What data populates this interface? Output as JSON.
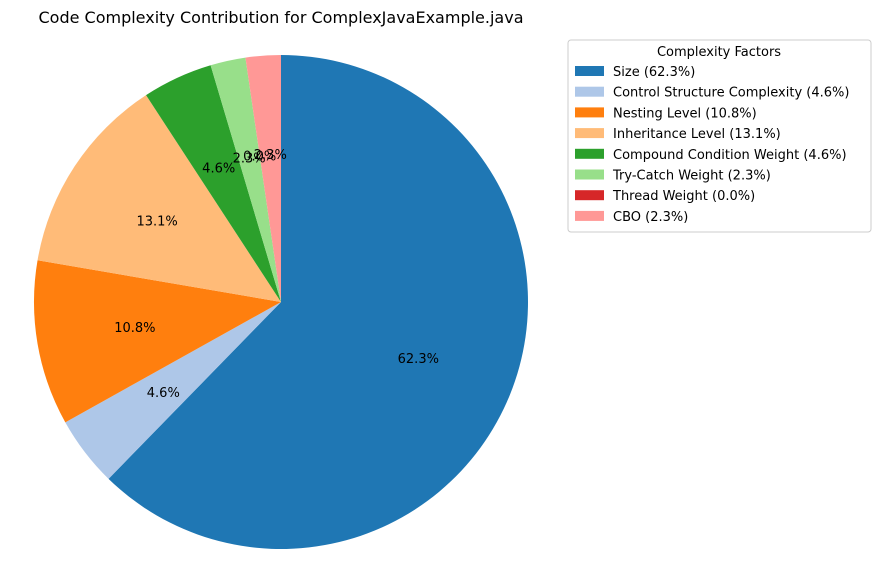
{
  "chart_data": {
    "type": "pie",
    "title": "Code Complexity Contribution for ComplexJavaExample.java",
    "start_angle_deg": 90,
    "direction": "clockwise",
    "slices": [
      {
        "label": "Size",
        "value": 62.3,
        "pct_label": "62.3%",
        "legend": "Size (62.3%)",
        "color": "#1f77b4"
      },
      {
        "label": "Control Structure Complexity",
        "value": 4.6,
        "pct_label": "4.6%",
        "legend": "Control Structure Complexity (4.6%)",
        "color": "#aec7e8"
      },
      {
        "label": "Nesting Level",
        "value": 10.8,
        "pct_label": "10.8%",
        "legend": "Nesting Level (10.8%)",
        "color": "#ff7f0e"
      },
      {
        "label": "Inheritance Level",
        "value": 13.1,
        "pct_label": "13.1%",
        "legend": "Inheritance Level (13.1%)",
        "color": "#ffbb78"
      },
      {
        "label": "Compound Condition Weight",
        "value": 4.6,
        "pct_label": "4.6%",
        "legend": "Compound Condition Weight (4.6%)",
        "color": "#2ca02c"
      },
      {
        "label": "Try-Catch Weight",
        "value": 2.3,
        "pct_label": "2.3%",
        "legend": "Try-Catch Weight (2.3%)",
        "color": "#98df8a"
      },
      {
        "label": "Thread Weight",
        "value": 0.0,
        "pct_label": "0.0%",
        "legend": "Thread Weight (0.0%)",
        "color": "#d62728"
      },
      {
        "label": "CBO",
        "value": 2.3,
        "pct_label": "2.3%",
        "legend": "CBO (2.3%)",
        "color": "#ff9896"
      }
    ],
    "legend": {
      "title": "Complexity Factors",
      "placement": "upper right, outside plot"
    }
  }
}
